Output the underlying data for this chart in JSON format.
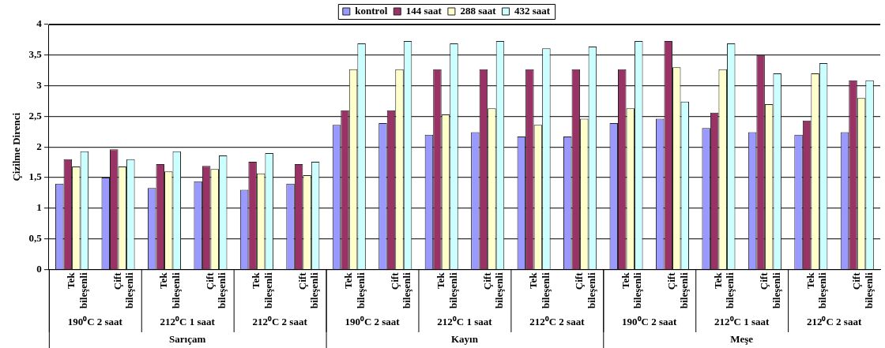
{
  "chart_data": {
    "type": "bar",
    "ylabel": "Çizilme Direnci",
    "categories": [
      "Tek bileşenli",
      "Çift bileşenli",
      "Tek bileşenli",
      "Çift bileşenli",
      "Tek bileşenli",
      "Çift bileşenli",
      "Tek bileşenli",
      "Çift bileşenli",
      "Tek bileşenli",
      "Çift bileşenli",
      "Tek bileşenli",
      "Çift bileşenli",
      "Tek bileşenli",
      "Çift bileşenli",
      "Tek bileşenli",
      "Çift bileşenli",
      "Tek bileşenli",
      "Çift bileşenli"
    ],
    "series": [
      {
        "name": "kontrol",
        "color": "#9999ff",
        "values": [
          1.4,
          1.5,
          1.33,
          1.44,
          1.3,
          1.4,
          2.36,
          2.39,
          2.2,
          2.24,
          2.17,
          2.17,
          2.39,
          2.46,
          2.31,
          2.24,
          2.2,
          2.24
        ]
      },
      {
        "name": "144 saat",
        "color": "#993366",
        "values": [
          1.8,
          1.96,
          1.72,
          1.69,
          1.76,
          1.72,
          2.6,
          2.6,
          3.27,
          3.27,
          3.27,
          3.27,
          3.27,
          3.73,
          2.56,
          3.5,
          2.43,
          3.09
        ]
      },
      {
        "name": "288 saat",
        "color": "#ffffcc",
        "values": [
          1.68,
          1.68,
          1.6,
          1.64,
          1.57,
          1.54,
          3.27,
          3.27,
          2.53,
          2.63,
          2.36,
          2.46,
          2.63,
          3.3,
          3.27,
          2.7,
          3.2,
          2.8
        ]
      },
      {
        "name": "432 saat",
        "color": "#ccffff",
        "values": [
          1.93,
          1.8,
          1.93,
          1.86,
          1.9,
          1.76,
          3.69,
          3.73,
          3.69,
          3.73,
          3.61,
          3.64,
          3.73,
          2.74,
          3.69,
          3.2,
          3.37,
          3.09
        ]
      }
    ],
    "ylim": [
      0,
      4
    ],
    "yticks": [
      0,
      {
        "value": 0.5,
        "label": "0,5"
      },
      1,
      {
        "value": 1.5,
        "label": "1,5"
      },
      2,
      {
        "value": 2.5,
        "label": "2,5"
      },
      3,
      {
        "value": 3.5,
        "label": "3,5"
      },
      4
    ],
    "grid": "y",
    "legend": "top",
    "annotations": [
      "190⁰C 2 saat",
      "212⁰C 1 saat",
      "212⁰C 2 saat",
      "190⁰C 2 saat",
      "212⁰C 1 saat",
      "212⁰C 2 saat",
      "190⁰C 2 saat",
      "212⁰C 1 saat",
      "212⁰C 2 saat",
      "Sarıçam",
      "Kayın",
      "Meşe"
    ]
  }
}
